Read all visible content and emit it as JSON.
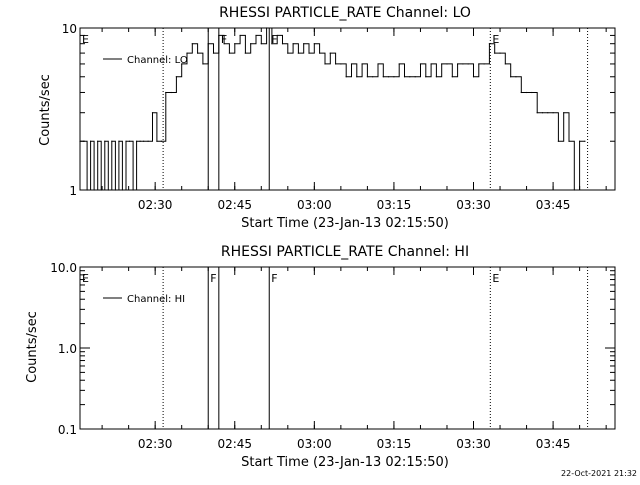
{
  "footer_timestamp": "22-Oct-2021 21:32",
  "chart_data": [
    {
      "type": "line",
      "title": "RHESSI PARTICLE_RATE Channel: LO",
      "xlabel": "Start Time (23-Jan-13 02:15:50)",
      "ylabel": "Counts/sec",
      "yscale": "log",
      "xlim": [
        "02:15:50",
        "03:56:40"
      ],
      "ylim": [
        1,
        10
      ],
      "xticks": [
        "02:30",
        "02:45",
        "03:00",
        "03:15",
        "03:30",
        "03:45"
      ],
      "yticks": [
        "1",
        "10"
      ],
      "legend": {
        "entries": [
          "Channel: LO"
        ],
        "placement": "top-left"
      },
      "grid": false,
      "event_markers": [
        {
          "label": "E",
          "time": "02:15:50",
          "style": "dotted"
        },
        {
          "label": "",
          "time": "02:31:30",
          "style": "dotted"
        },
        {
          "label": "",
          "time": "02:40:00",
          "style": "solid"
        },
        {
          "label": "F",
          "time": "02:42:00",
          "style": "solid"
        },
        {
          "label": "F",
          "time": "02:51:30",
          "style": "solid"
        },
        {
          "label": "E",
          "time": "03:33:10",
          "style": "dotted"
        },
        {
          "label": "",
          "time": "03:51:30",
          "style": "dotted"
        }
      ],
      "series": [
        {
          "name": "Channel: LO",
          "x": [
            "02:15:50",
            "02:16:30",
            "02:17:10",
            "02:17:50",
            "02:18:30",
            "02:19:10",
            "02:19:50",
            "02:20:30",
            "02:21:10",
            "02:21:50",
            "02:22:30",
            "02:23:10",
            "02:23:50",
            "02:24:30",
            "02:25:10",
            "02:25:50",
            "02:26:30",
            "02:27:10",
            "02:27:50",
            "02:28:40",
            "02:29:30",
            "02:30:20",
            "02:31:10",
            "02:32:00",
            "02:33:00",
            "02:34:00",
            "02:35:00",
            "02:36:00",
            "02:37:00",
            "02:38:00",
            "02:39:00",
            "02:40:00",
            "02:41:00",
            "02:42:00",
            "02:43:00",
            "02:44:00",
            "02:45:00",
            "02:46:00",
            "02:47:00",
            "02:48:00",
            "02:49:00",
            "02:50:00",
            "02:51:00",
            "02:52:00",
            "02:53:00",
            "02:54:00",
            "02:55:00",
            "02:56:00",
            "02:57:00",
            "02:58:00",
            "02:59:00",
            "03:00:00",
            "03:01:00",
            "03:02:00",
            "03:03:00",
            "03:04:00",
            "03:05:00",
            "03:06:00",
            "03:07:00",
            "03:08:00",
            "03:09:00",
            "03:10:00",
            "03:11:00",
            "03:12:00",
            "03:13:00",
            "03:14:00",
            "03:15:00",
            "03:16:00",
            "03:17:00",
            "03:18:00",
            "03:19:00",
            "03:20:00",
            "03:21:00",
            "03:22:00",
            "03:23:00",
            "03:24:00",
            "03:25:00",
            "03:26:00",
            "03:27:00",
            "03:28:00",
            "03:29:00",
            "03:30:00",
            "03:31:00",
            "03:32:00",
            "03:33:00",
            "03:34:00",
            "03:35:00",
            "03:36:00",
            "03:37:00",
            "03:38:00",
            "03:39:00",
            "03:40:00",
            "03:41:00",
            "03:42:00",
            "03:43:00",
            "03:44:00",
            "03:45:00",
            "03:46:00",
            "03:47:00",
            "03:48:00",
            "03:49:00",
            "03:50:00",
            "03:51:00"
          ],
          "values": [
            2,
            2,
            1,
            2,
            1,
            2,
            1,
            2,
            1,
            2,
            1,
            2,
            1,
            2,
            2,
            1,
            2,
            2,
            2,
            2,
            3,
            2,
            2,
            4,
            4,
            5,
            6,
            7,
            8,
            7,
            6,
            8,
            7,
            9,
            8,
            7,
            8,
            9,
            7,
            8,
            9,
            8,
            10,
            8,
            9,
            8,
            7,
            8,
            7,
            8,
            7,
            8,
            7,
            6,
            7,
            6,
            6,
            5,
            6,
            5,
            6,
            5,
            5,
            6,
            5,
            5,
            5,
            6,
            5,
            5,
            5,
            6,
            5,
            6,
            5,
            6,
            6,
            5,
            6,
            6,
            6,
            5,
            6,
            6,
            8,
            7,
            7,
            6,
            5,
            5,
            4,
            4,
            4,
            3,
            3,
            3,
            3,
            2,
            3,
            2,
            1,
            2,
            2
          ]
        }
      ]
    },
    {
      "type": "line",
      "title": "RHESSI PARTICLE_RATE Channel: HI",
      "xlabel": "Start Time (23-Jan-13 02:15:50)",
      "ylabel": "Counts/sec",
      "yscale": "log",
      "xlim": [
        "02:15:50",
        "03:56:40"
      ],
      "ylim": [
        0.1,
        10
      ],
      "xticks": [
        "02:30",
        "02:45",
        "03:00",
        "03:15",
        "03:30",
        "03:45"
      ],
      "yticks": [
        "0.1",
        "1.0",
        "10.0"
      ],
      "legend": {
        "entries": [
          "Channel: HI"
        ],
        "placement": "top-left"
      },
      "grid": false,
      "event_markers": [
        {
          "label": "E",
          "time": "02:15:50",
          "style": "dotted"
        },
        {
          "label": "",
          "time": "02:31:30",
          "style": "dotted"
        },
        {
          "label": "F",
          "time": "02:40:00",
          "style": "solid"
        },
        {
          "label": "",
          "time": "02:42:00",
          "style": "solid"
        },
        {
          "label": "F",
          "time": "02:51:30",
          "style": "solid"
        },
        {
          "label": "E",
          "time": "03:33:10",
          "style": "dotted"
        },
        {
          "label": "",
          "time": "03:51:30",
          "style": "dotted"
        }
      ],
      "series": [
        {
          "name": "Channel: HI",
          "x": [],
          "values": []
        }
      ]
    }
  ]
}
